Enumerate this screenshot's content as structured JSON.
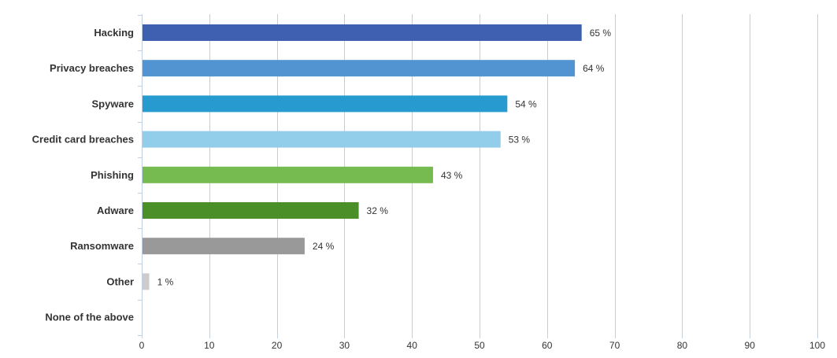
{
  "chart_data": {
    "type": "bar",
    "orientation": "horizontal",
    "categories": [
      "Hacking",
      "Privacy breaches",
      "Spyware",
      "Credit card breaches",
      "Phishing",
      "Adware",
      "Ransomware",
      "Other",
      "None of the above"
    ],
    "values": [
      65,
      64,
      54,
      53,
      43,
      32,
      24,
      1,
      0
    ],
    "value_labels": [
      "65 %",
      "64 %",
      "54 %",
      "53 %",
      "43 %",
      "32 %",
      "24 %",
      "1 %",
      ""
    ],
    "colors": [
      "#3f5fb0",
      "#5294d2",
      "#279bd0",
      "#92cde9",
      "#75bb4f",
      "#4b8f28",
      "#999999",
      "#cccccc",
      "#cccccc"
    ],
    "xlim": [
      0,
      100
    ],
    "xticks": [
      0,
      10,
      20,
      30,
      40,
      50,
      60,
      70,
      80,
      90,
      100
    ],
    "grid": true,
    "title": "",
    "xlabel": "",
    "ylabel": ""
  }
}
